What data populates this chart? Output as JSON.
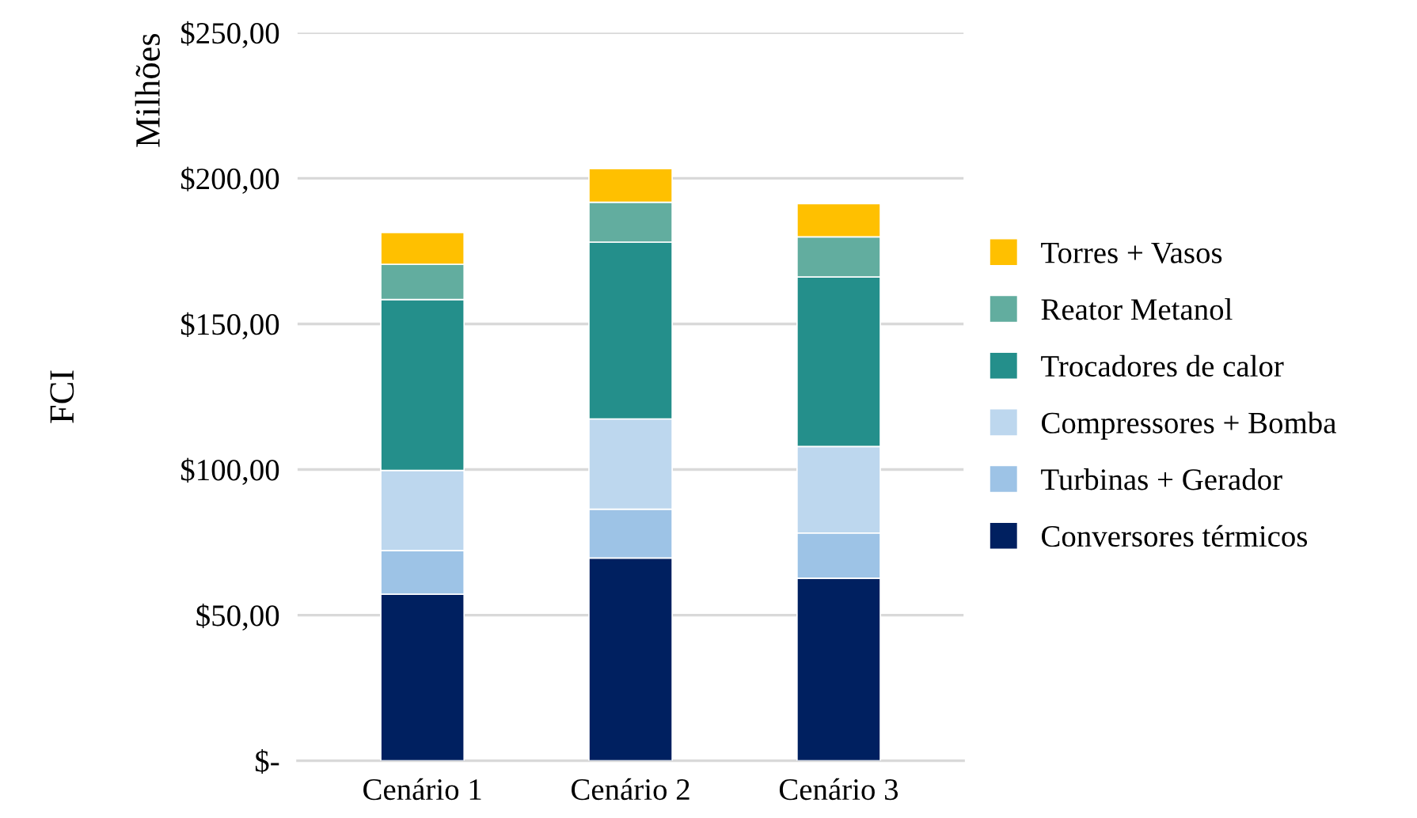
{
  "chart_data": {
    "type": "bar",
    "stacked": true,
    "ylabel": "FCI",
    "annotations": [
      "Milhões"
    ],
    "categories": [
      "Cenário 1",
      "Cenário 2",
      "Cenário 3"
    ],
    "series": [
      {
        "name": "Conversores térmicos",
        "color": "#002060",
        "values": [
          57.2,
          69.6,
          62.7
        ]
      },
      {
        "name": "Turbinas + Gerador",
        "color": "#9dc3e6",
        "values": [
          15.0,
          16.8,
          15.5
        ]
      },
      {
        "name": "Compressores + Bomba",
        "color": "#bdd7ee",
        "values": [
          27.5,
          31.0,
          29.7
        ]
      },
      {
        "name": "Trocadores de calor",
        "color": "#248f8b",
        "values": [
          58.7,
          60.7,
          58.2
        ]
      },
      {
        "name": "Reator Metanol",
        "color": "#62ad9f",
        "values": [
          12.1,
          13.7,
          13.8
        ]
      },
      {
        "name": "Torres + Vasos",
        "color": "#ffc000",
        "values": [
          10.9,
          11.5,
          11.4
        ]
      }
    ],
    "ylim": [
      0,
      250
    ],
    "yticks": [
      {
        "value": 0,
        "label": "$-"
      },
      {
        "value": 50,
        "label": "$50,00"
      },
      {
        "value": 100,
        "label": "$100,00"
      },
      {
        "value": 150,
        "label": "$150,00"
      },
      {
        "value": 200,
        "label": "$200,00"
      },
      {
        "value": 250,
        "label": "$250,00"
      }
    ],
    "grid": "y",
    "legend": "right"
  }
}
